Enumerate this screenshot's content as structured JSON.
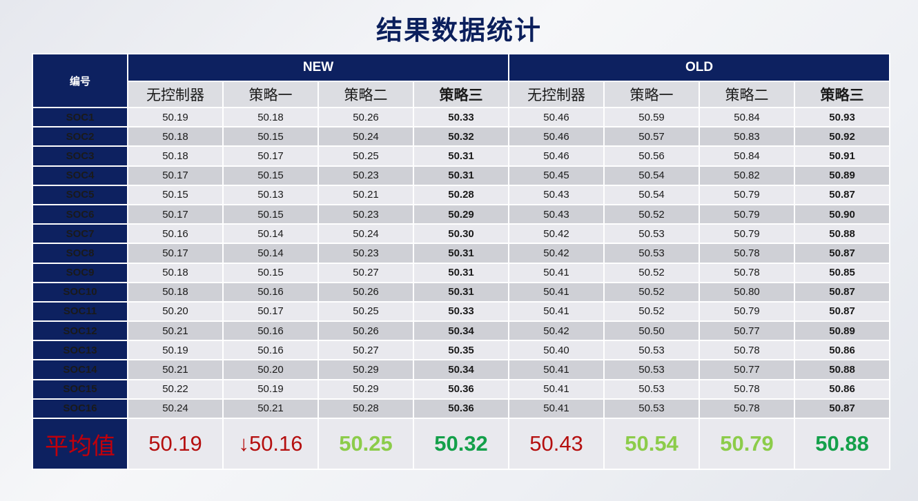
{
  "title": "结果数据统计",
  "table": {
    "id_header": "编号",
    "groups": [
      "NEW",
      "OLD"
    ],
    "strategies": [
      "无控制器",
      "策略一",
      "策略二",
      "策略三"
    ],
    "rows": [
      {
        "id": "SOC1",
        "values": [
          "50.19",
          "50.18",
          "50.26",
          "50.33",
          "50.46",
          "50.59",
          "50.84",
          "50.93"
        ]
      },
      {
        "id": "SOC2",
        "values": [
          "50.18",
          "50.15",
          "50.24",
          "50.32",
          "50.46",
          "50.57",
          "50.83",
          "50.92"
        ]
      },
      {
        "id": "SOC3",
        "values": [
          "50.18",
          "50.17",
          "50.25",
          "50.31",
          "50.46",
          "50.56",
          "50.84",
          "50.91"
        ]
      },
      {
        "id": "SOC4",
        "values": [
          "50.17",
          "50.15",
          "50.23",
          "50.31",
          "50.45",
          "50.54",
          "50.82",
          "50.89"
        ]
      },
      {
        "id": "SOC5",
        "values": [
          "50.15",
          "50.13",
          "50.21",
          "50.28",
          "50.43",
          "50.54",
          "50.79",
          "50.87"
        ]
      },
      {
        "id": "SOC6",
        "values": [
          "50.17",
          "50.15",
          "50.23",
          "50.29",
          "50.43",
          "50.52",
          "50.79",
          "50.90"
        ]
      },
      {
        "id": "SOC7",
        "values": [
          "50.16",
          "50.14",
          "50.24",
          "50.30",
          "50.42",
          "50.53",
          "50.79",
          "50.88"
        ]
      },
      {
        "id": "SOC8",
        "values": [
          "50.17",
          "50.14",
          "50.23",
          "50.31",
          "50.42",
          "50.53",
          "50.78",
          "50.87"
        ]
      },
      {
        "id": "SOC9",
        "values": [
          "50.18",
          "50.15",
          "50.27",
          "50.31",
          "50.41",
          "50.52",
          "50.78",
          "50.85"
        ]
      },
      {
        "id": "SOC10",
        "values": [
          "50.18",
          "50.16",
          "50.26",
          "50.31",
          "50.41",
          "50.52",
          "50.80",
          "50.87"
        ]
      },
      {
        "id": "SOC11",
        "values": [
          "50.20",
          "50.17",
          "50.25",
          "50.33",
          "50.41",
          "50.52",
          "50.79",
          "50.87"
        ]
      },
      {
        "id": "SOC12",
        "values": [
          "50.21",
          "50.16",
          "50.26",
          "50.34",
          "50.42",
          "50.50",
          "50.77",
          "50.89"
        ]
      },
      {
        "id": "SOC13",
        "values": [
          "50.19",
          "50.16",
          "50.27",
          "50.35",
          "50.40",
          "50.53",
          "50.78",
          "50.86"
        ]
      },
      {
        "id": "SOC14",
        "values": [
          "50.21",
          "50.20",
          "50.29",
          "50.34",
          "50.41",
          "50.53",
          "50.77",
          "50.88"
        ]
      },
      {
        "id": "SOC15",
        "values": [
          "50.22",
          "50.19",
          "50.29",
          "50.36",
          "50.41",
          "50.53",
          "50.78",
          "50.86"
        ]
      },
      {
        "id": "SOC16",
        "values": [
          "50.24",
          "50.21",
          "50.28",
          "50.36",
          "50.41",
          "50.53",
          "50.78",
          "50.87"
        ]
      }
    ],
    "average": {
      "label": "平均值",
      "arrow": "↓",
      "values": [
        "50.19",
        "50.16",
        "50.25",
        "50.32",
        "50.43",
        "50.54",
        "50.79",
        "50.88"
      ]
    }
  },
  "colors": {
    "navy": "#0d2160",
    "average_red": "#b50f0f",
    "average_light_green": "#8ccc4a",
    "average_dark_green": "#14a04a"
  }
}
